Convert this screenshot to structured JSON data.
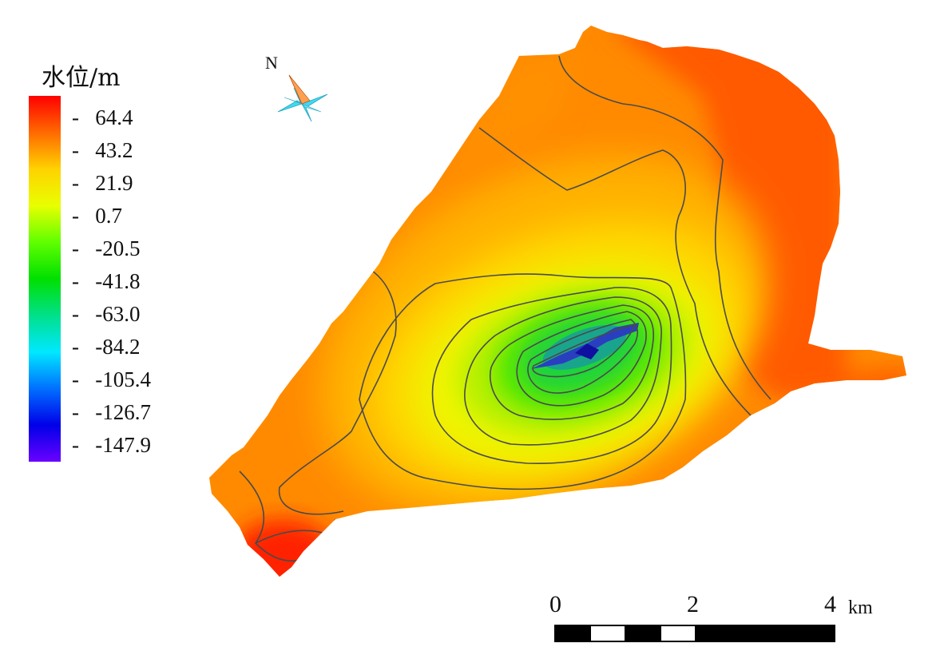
{
  "legend": {
    "title": "水位/m",
    "labels": [
      "64.4",
      "43.2",
      "21.9",
      "0.7",
      "-20.5",
      "-41.8",
      "-63.0",
      "-84.2",
      "-105.4",
      "-126.7",
      "-147.9"
    ],
    "colors": [
      "#ff0000",
      "#ff6a00",
      "#ffd200",
      "#e8ff00",
      "#60ff00",
      "#00e000",
      "#00e08a",
      "#00e8ff",
      "#0070ff",
      "#0000e8",
      "#6a00ff"
    ]
  },
  "north_arrow": {
    "label": "N",
    "icon": "compass-star-icon",
    "colors": [
      "#ff6a00",
      "#40d8f0"
    ]
  },
  "scale_bar": {
    "ticks": [
      "0",
      "2",
      "4"
    ],
    "unit": "km"
  }
}
